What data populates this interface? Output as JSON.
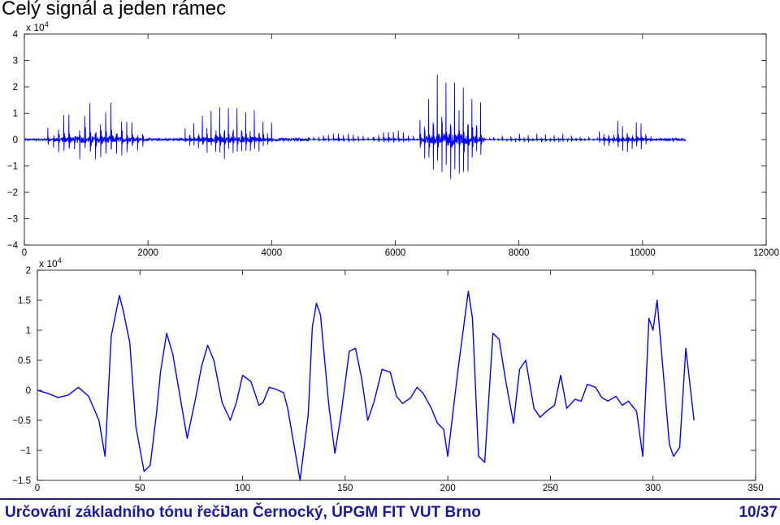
{
  "slide": {
    "title": "Celý signál a jeden rámec",
    "footer_left": "Určování základního tónu řeči",
    "footer_author": "Jan Černocký, ÚPGM FIT VUT Brno",
    "footer_page": "10/37"
  },
  "colors": {
    "line": "#0000ff",
    "footer": "#1a1aa0"
  },
  "chart_data": [
    {
      "type": "line",
      "title": "",
      "xlabel": "",
      "ylabel": "",
      "xlim": [
        0,
        12000
      ],
      "ylim": [
        -40000,
        40000
      ],
      "y_scale_label": "x 10",
      "y_scale_exp": "4",
      "xticks": [
        0,
        2000,
        4000,
        6000,
        8000,
        10000,
        12000
      ],
      "xtick_labels": [
        "0",
        "2000",
        "4000",
        "6000",
        "8000",
        "10000",
        "12000"
      ],
      "yticks": [
        -40000,
        -30000,
        -20000,
        -10000,
        0,
        10000,
        20000,
        30000,
        40000
      ],
      "ytick_labels": [
        "−4",
        "−3",
        "−2",
        "−1",
        "0",
        "1",
        "2",
        "3",
        "4"
      ],
      "grid": false,
      "signal_length": 10700,
      "segments": [
        {
          "x": [
            0,
            380
          ],
          "amp": 300
        },
        {
          "x": [
            380,
            1950
          ],
          "amp": 17000,
          "pitch": 85
        },
        {
          "x": [
            1950,
            2600
          ],
          "amp": 500
        },
        {
          "x": [
            2600,
            4050
          ],
          "amp": 15000,
          "pitch": 70
        },
        {
          "x": [
            4050,
            4600
          ],
          "amp": 600
        },
        {
          "x": [
            4600,
            5650
          ],
          "amp": 2500,
          "pitch": 80
        },
        {
          "x": [
            5650,
            6300
          ],
          "amp": 4000,
          "pitch": 80
        },
        {
          "x": [
            6300,
            6400
          ],
          "amp": 200
        },
        {
          "x": [
            6400,
            7450
          ],
          "amp": 32000,
          "pitch": 70
        },
        {
          "x": [
            7450,
            9300
          ],
          "amp": 2500,
          "pitch": 70
        },
        {
          "x": [
            9300,
            10200
          ],
          "amp": 10000,
          "pitch": 75
        },
        {
          "x": [
            10200,
            10700
          ],
          "amp": 500
        }
      ]
    },
    {
      "type": "line",
      "title": "",
      "xlabel": "",
      "ylabel": "",
      "xlim": [
        0,
        350
      ],
      "ylim": [
        -15000,
        20000
      ],
      "y_scale_label": "x 10",
      "y_scale_exp": "4",
      "xticks": [
        0,
        50,
        100,
        150,
        200,
        250,
        300,
        350
      ],
      "xtick_labels": [
        "0",
        "50",
        "100",
        "150",
        "200",
        "250",
        "300",
        "350"
      ],
      "yticks": [
        -15000,
        -10000,
        -5000,
        0,
        5000,
        10000,
        15000,
        20000
      ],
      "ytick_labels": [
        "−1.5",
        "−1",
        "−0.5",
        "0",
        "0.5",
        "1",
        "1.5",
        "2"
      ],
      "grid": false,
      "x": [
        0,
        5,
        10,
        15,
        20,
        25,
        30,
        33,
        36,
        40,
        42,
        45,
        48,
        52,
        55,
        58,
        60,
        63,
        66,
        70,
        73,
        77,
        80,
        83,
        86,
        90,
        94,
        97,
        100,
        104,
        108,
        110,
        113,
        116,
        120,
        122,
        125,
        128,
        132,
        134,
        136,
        138,
        142,
        145,
        148,
        152,
        155,
        158,
        161,
        164,
        168,
        172,
        175,
        178,
        182,
        185,
        188,
        192,
        195,
        198,
        200,
        205,
        210,
        212,
        215,
        218,
        222,
        225,
        228,
        232,
        235,
        238,
        242,
        245,
        248,
        252,
        255,
        258,
        262,
        265,
        268,
        272,
        275,
        278,
        282,
        285,
        288,
        292,
        295,
        298,
        300,
        302,
        305,
        308,
        310,
        313,
        316,
        320
      ],
      "y": [
        0,
        -500,
        -1200,
        -800,
        500,
        -1000,
        -5000,
        -11000,
        9000,
        15800,
        13000,
        8000,
        -6000,
        -13500,
        -12500,
        -4000,
        3000,
        9500,
        6000,
        -2000,
        -8000,
        -1500,
        4000,
        7500,
        5000,
        -2000,
        -5000,
        -2000,
        2500,
        1500,
        -2500,
        -2000,
        500,
        200,
        -400,
        -3000,
        -9000,
        -15000,
        -4000,
        10500,
        14500,
        12500,
        -2500,
        -10500,
        -4000,
        6500,
        7000,
        2000,
        -5000,
        -2000,
        3500,
        3000,
        -1000,
        -2200,
        -1200,
        500,
        -500,
        -3000,
        -5500,
        -6500,
        -11000,
        3500,
        16500,
        12000,
        -11000,
        -12000,
        9500,
        8500,
        2000,
        -5500,
        3500,
        5000,
        -3000,
        -4500,
        -3500,
        -2500,
        2500,
        -3000,
        -1500,
        -1800,
        1000,
        500,
        -1200,
        -1800,
        -1000,
        -2500,
        -1800,
        -3500,
        -11000,
        12000,
        10000,
        15000,
        3000,
        -9000,
        -11000,
        -9500,
        7000,
        -5000
      ],
      "dense_x": [
        0,
        350
      ]
    }
  ]
}
